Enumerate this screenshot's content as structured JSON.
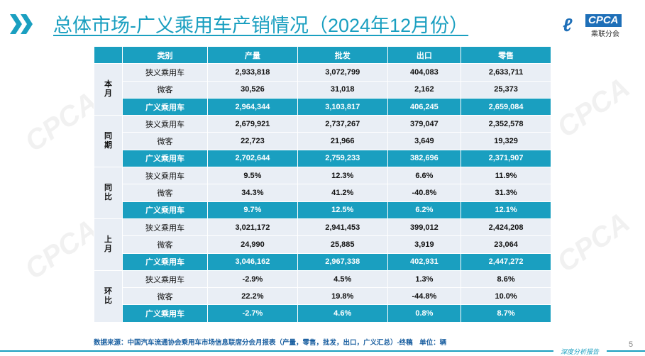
{
  "title": "总体市场-广义乘用车产销情况（2024年12月份）",
  "logo": {
    "text": "CPCA",
    "sub": "乘联分会"
  },
  "colors": {
    "accent": "#1a9fc0",
    "row_bg": "#e9eef5"
  },
  "table": {
    "headers": [
      "",
      "类别",
      "产量",
      "批发",
      "出口",
      "零售"
    ],
    "groups": [
      {
        "label": "本月",
        "rows": [
          [
            "狭义乘用车",
            "2,933,818",
            "3,072,799",
            "404,083",
            "2,633,711"
          ],
          [
            "微客",
            "30,526",
            "31,018",
            "2,162",
            "25,373"
          ],
          [
            "广义乘用车",
            "2,964,344",
            "3,103,817",
            "406,245",
            "2,659,084"
          ]
        ]
      },
      {
        "label": "同期",
        "rows": [
          [
            "狭义乘用车",
            "2,679,921",
            "2,737,267",
            "379,047",
            "2,352,578"
          ],
          [
            "微客",
            "22,723",
            "21,966",
            "3,649",
            "19,329"
          ],
          [
            "广义乘用车",
            "2,702,644",
            "2,759,233",
            "382,696",
            "2,371,907"
          ]
        ]
      },
      {
        "label": "同比",
        "rows": [
          [
            "狭义乘用车",
            "9.5%",
            "12.3%",
            "6.6%",
            "11.9%"
          ],
          [
            "微客",
            "34.3%",
            "41.2%",
            "-40.8%",
            "31.3%"
          ],
          [
            "广义乘用车",
            "9.7%",
            "12.5%",
            "6.2%",
            "12.1%"
          ]
        ]
      },
      {
        "label": "上月",
        "rows": [
          [
            "狭义乘用车",
            "3,021,172",
            "2,941,453",
            "399,012",
            "2,424,208"
          ],
          [
            "微客",
            "24,990",
            "25,885",
            "3,919",
            "23,064"
          ],
          [
            "广义乘用车",
            "3,046,162",
            "2,967,338",
            "402,931",
            "2,447,272"
          ]
        ]
      },
      {
        "label": "环比",
        "rows": [
          [
            "狭义乘用车",
            "-2.9%",
            "4.5%",
            "1.3%",
            "8.6%"
          ],
          [
            "微客",
            "22.2%",
            "19.8%",
            "-44.8%",
            "10.0%"
          ],
          [
            "广义乘用车",
            "-2.7%",
            "4.6%",
            "0.8%",
            "8.7%"
          ]
        ]
      }
    ]
  },
  "source": "数据来源：中国汽车流通协会乘用车市场信息联席分会月报表（产量，零售，批发，出口，广义汇总）-终稿　单位：辆",
  "page_number": "5",
  "footer": "深度分析报告"
}
